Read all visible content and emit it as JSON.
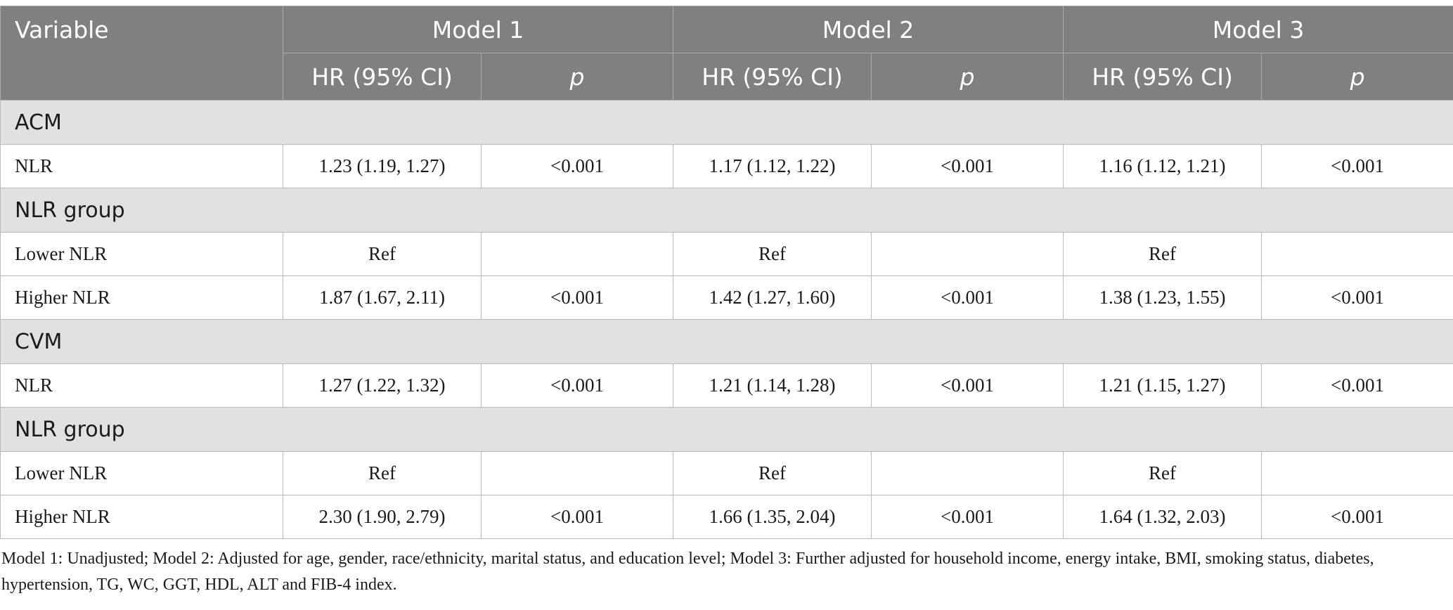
{
  "header": {
    "variable": "Variable",
    "models": [
      "Model 1",
      "Model 2",
      "Model 3"
    ],
    "hr": "HR (95% CI)",
    "p": "p"
  },
  "sections": [
    {
      "title": "ACM",
      "rows": [
        {
          "label": "NLR",
          "cells": [
            "1.23 (1.19, 1.27)",
            "<0.001",
            "1.17 (1.12, 1.22)",
            "<0.001",
            "1.16 (1.12, 1.21)",
            "<0.001"
          ]
        }
      ]
    },
    {
      "title": "NLR group",
      "rows": [
        {
          "label": "Lower NLR",
          "cells": [
            "Ref",
            "",
            "Ref",
            "",
            "Ref",
            ""
          ]
        },
        {
          "label": "Higher NLR",
          "cells": [
            "1.87 (1.67, 2.11)",
            "<0.001",
            "1.42 (1.27, 1.60)",
            "<0.001",
            "1.38 (1.23, 1.55)",
            "<0.001"
          ]
        }
      ]
    },
    {
      "title": "CVM",
      "rows": [
        {
          "label": "NLR",
          "cells": [
            "1.27 (1.22, 1.32)",
            "<0.001",
            "1.21 (1.14, 1.28)",
            "<0.001",
            "1.21 (1.15, 1.27)",
            "<0.001"
          ]
        }
      ]
    },
    {
      "title": "NLR group",
      "rows": [
        {
          "label": "Lower NLR",
          "cells": [
            "Ref",
            "",
            "Ref",
            "",
            "Ref",
            ""
          ]
        },
        {
          "label": "Higher NLR",
          "cells": [
            "2.30 (1.90, 2.79)",
            "<0.001",
            "1.66 (1.35, 2.04)",
            "<0.001",
            "1.64 (1.32, 2.03)",
            "<0.001"
          ]
        }
      ]
    }
  ],
  "footnote": "Model 1: Unadjusted; Model 2: Adjusted for age, gender, race/ethnicity, marital status, and education level; Model 3: Further adjusted for household income, energy intake, BMI, smoking status, diabetes, hypertension, TG, WC, GGT, HDL, ALT and FIB-4 index."
}
